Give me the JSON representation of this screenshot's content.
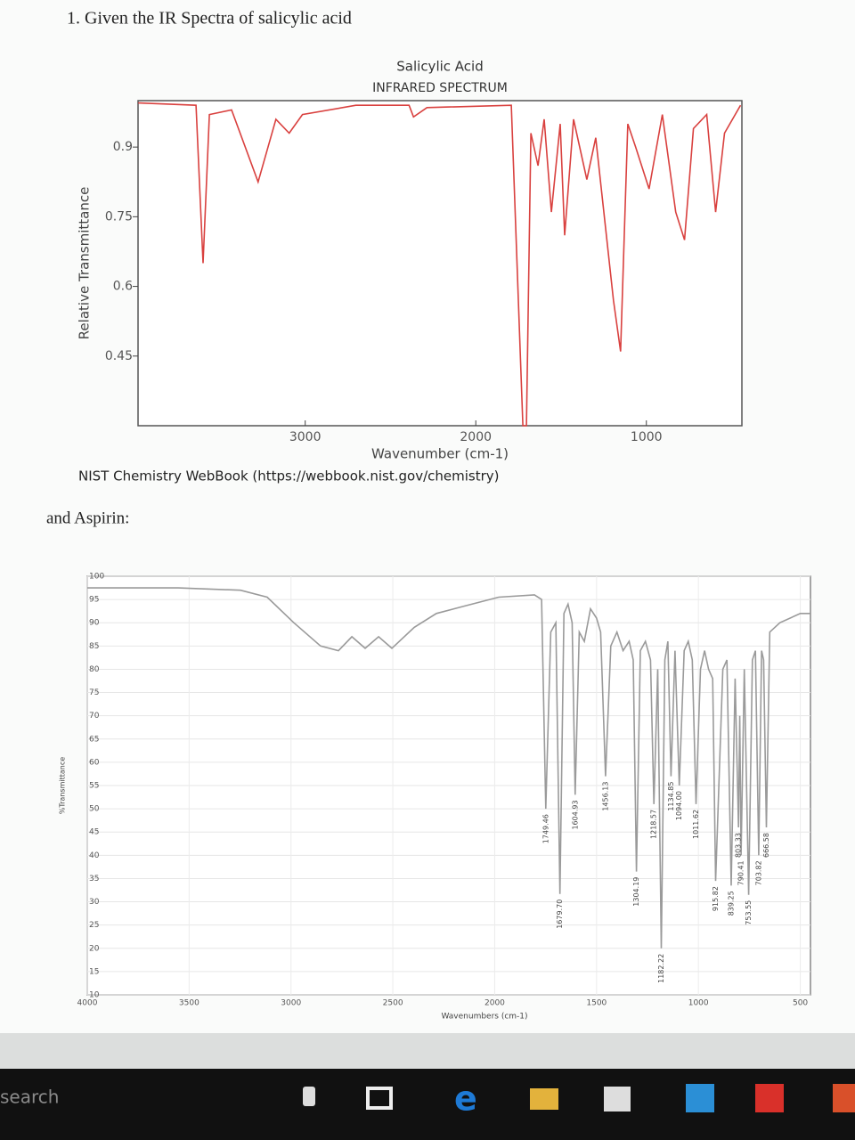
{
  "doc": {
    "heading": "1. Given the IR Spectra of salicylic acid",
    "source": "NIST Chemistry WebBook (https://webbook.nist.gov/chemistry)",
    "aspirin_intro": "and Aspirin:"
  },
  "taskbar": {
    "search": "search"
  },
  "chart_data": [
    {
      "type": "line",
      "title": "Salicylic Acid",
      "subtitle": "INFRARED SPECTRUM",
      "y_label": "Relative Transmittance",
      "x_label": "Wavenumber (cm-1)",
      "color": "#d9413f",
      "grid": false,
      "xlim": [
        3980,
        440
      ],
      "ylim": [
        0.3,
        1.0
      ],
      "xticks": [
        3000,
        2000,
        1000
      ],
      "yticks": [
        0.9,
        0.75,
        0.6,
        0.45
      ],
      "x": [
        3979,
        3640,
        3599,
        3562,
        3432,
        3276,
        3172,
        3094,
        3016,
        2703,
        2391,
        2365,
        2286,
        1792,
        1724,
        1703,
        1677,
        1635,
        1599,
        1557,
        1505,
        1479,
        1427,
        1349,
        1297,
        1193,
        1151,
        1109,
        1063,
        984,
        906,
        828,
        776,
        724,
        646,
        594,
        542,
        448
      ],
      "values": [
        0.995,
        0.99,
        0.65,
        0.97,
        0.98,
        0.825,
        0.96,
        0.93,
        0.97,
        0.99,
        0.99,
        0.965,
        0.985,
        0.99,
        0.3,
        0.3,
        0.93,
        0.86,
        0.96,
        0.76,
        0.95,
        0.71,
        0.96,
        0.83,
        0.92,
        0.57,
        0.46,
        0.95,
        0.9,
        0.81,
        0.97,
        0.76,
        0.7,
        0.94,
        0.97,
        0.76,
        0.93,
        0.99
      ]
    },
    {
      "type": "line",
      "y_label": "%Transmittance",
      "x_label": "Wavenumbers (cm-1)",
      "color": "#9a9a9a",
      "grid": true,
      "xlim": [
        4000,
        450
      ],
      "ylim": [
        10,
        100
      ],
      "xticks": [
        4000,
        3500,
        3000,
        2500,
        2000,
        1500,
        1000,
        500
      ],
      "yticks": [
        10,
        15,
        20,
        25,
        30,
        35,
        40,
        45,
        50,
        55,
        60,
        65,
        70,
        75,
        80,
        85,
        90,
        95,
        100
      ],
      "x": [
        4000,
        3554,
        3248,
        3117,
        2986,
        2855,
        2767,
        2701,
        2636,
        2570,
        2505,
        2395,
        2286,
        2155,
        1980,
        1805,
        1770,
        1749.46,
        1725,
        1700,
        1679.7,
        1660,
        1640,
        1620,
        1604.93,
        1585,
        1560,
        1530,
        1500,
        1480,
        1456.13,
        1430,
        1400,
        1370,
        1340,
        1320,
        1304.19,
        1285,
        1260,
        1235,
        1218.57,
        1200,
        1182.22,
        1165,
        1150,
        1134.85,
        1115,
        1094.0,
        1070,
        1050,
        1030,
        1011.62,
        990,
        970,
        950,
        930,
        915.82,
        880,
        860,
        839.25,
        820,
        803.33,
        797,
        790.41,
        775,
        753.55,
        735,
        720,
        703.82,
        690,
        680,
        666.58,
        650,
        600,
        500,
        450
      ],
      "values": [
        97.5,
        97.5,
        97,
        95.5,
        90,
        85,
        84,
        87,
        84.5,
        87,
        84.5,
        89,
        92,
        93.5,
        95.5,
        96,
        95,
        50,
        88,
        90,
        31.7,
        92,
        94,
        90,
        53,
        88,
        86,
        93,
        91,
        88,
        57,
        85,
        88,
        84,
        86,
        82,
        36.5,
        84,
        86,
        82,
        51,
        80,
        20,
        82,
        86,
        57,
        84,
        55,
        84,
        86,
        82,
        51,
        80,
        84,
        80,
        78,
        34.5,
        80,
        82,
        33.5,
        78,
        46,
        70,
        40,
        80,
        31.5,
        82,
        84,
        40,
        84,
        82,
        46,
        88,
        90,
        92,
        92
      ],
      "annotations": [
        {
          "value": 1749.46,
          "label": "1749.46"
        },
        {
          "value": 1679.7,
          "label": "1679.70"
        },
        {
          "value": 1604.93,
          "label": "1604.93"
        },
        {
          "value": 1456.13,
          "label": "1456.13"
        },
        {
          "value": 1304.19,
          "label": "1304.19"
        },
        {
          "value": 1218.57,
          "label": "1218.57"
        },
        {
          "value": 1182.22,
          "label": "1182.22"
        },
        {
          "value": 1134.85,
          "label": "1134.85"
        },
        {
          "value": 1094.0,
          "label": "1094.00"
        },
        {
          "value": 1011.62,
          "label": "1011.62"
        },
        {
          "value": 915.82,
          "label": "915.82"
        },
        {
          "value": 839.25,
          "label": "839.25"
        },
        {
          "value": 803.33,
          "label": "803.33"
        },
        {
          "value": 790.41,
          "label": "790.41"
        },
        {
          "value": 753.55,
          "label": "753.55"
        },
        {
          "value": 703.82,
          "label": "703.82"
        },
        {
          "value": 666.58,
          "label": "666.58"
        }
      ]
    }
  ]
}
